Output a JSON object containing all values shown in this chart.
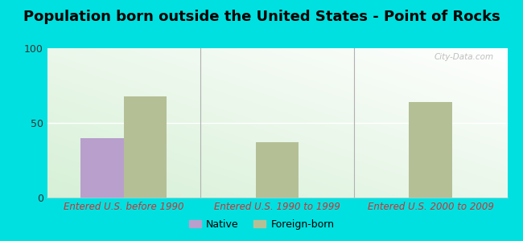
{
  "title": "Population born outside the United States - Point of Rocks",
  "categories": [
    "Entered U.S. before 1990",
    "Entered U.S. 1990 to 1999",
    "Entered U.S. 2000 to 2009"
  ],
  "native_values": [
    40,
    0,
    0
  ],
  "foreign_values": [
    68,
    37,
    64
  ],
  "bar_width": 0.28,
  "native_color": "#b89fcc",
  "foreign_color": "#b5bf96",
  "ylim": [
    0,
    100
  ],
  "yticks": [
    0,
    50,
    100
  ],
  "background_color": "#00e0e0",
  "xlabel_color": "#cc3333",
  "legend_native_label": "Native",
  "legend_foreign_label": "Foreign-born",
  "title_fontsize": 13,
  "tick_fontsize": 9,
  "xlabel_fontsize": 8.5,
  "watermark": "City-Data.com"
}
